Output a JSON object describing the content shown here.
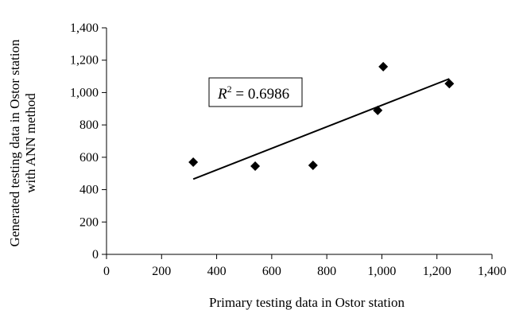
{
  "chart_data": {
    "type": "scatter",
    "title": "",
    "xlabel": "Primary testing data in Ostor station",
    "ylabel_lines": [
      "Generated testing data in Ostor station",
      "with ANN method"
    ],
    "xlim": [
      0,
      1400
    ],
    "ylim": [
      0,
      1400
    ],
    "x_ticks": [
      0,
      200,
      400,
      600,
      800,
      1000,
      1200,
      1400
    ],
    "y_ticks": [
      0,
      200,
      400,
      600,
      800,
      1000,
      1200,
      1400
    ],
    "x_tick_labels": [
      "0",
      "200",
      "400",
      "600",
      "800",
      "1,000",
      "1,200",
      "1,400"
    ],
    "y_tick_labels": [
      "0",
      "200",
      "400",
      "600",
      "800",
      "1,000",
      "1,200",
      "1,400"
    ],
    "grid": false,
    "legend": "none",
    "marker": "diamond",
    "marker_color": "#000000",
    "series": [
      {
        "points": [
          {
            "x": 315,
            "y": 570
          },
          {
            "x": 540,
            "y": 545
          },
          {
            "x": 750,
            "y": 550
          },
          {
            "x": 985,
            "y": 890
          },
          {
            "x": 1005,
            "y": 1160
          },
          {
            "x": 1245,
            "y": 1055
          }
        ]
      }
    ],
    "trendline": {
      "type": "linear",
      "x_start": 315,
      "y_start": 465,
      "x_end": 1245,
      "y_end": 1085
    },
    "annotation": {
      "r2_symbol": "R",
      "r2_exponent": "2",
      "r2_text": " = 0.6986"
    }
  }
}
